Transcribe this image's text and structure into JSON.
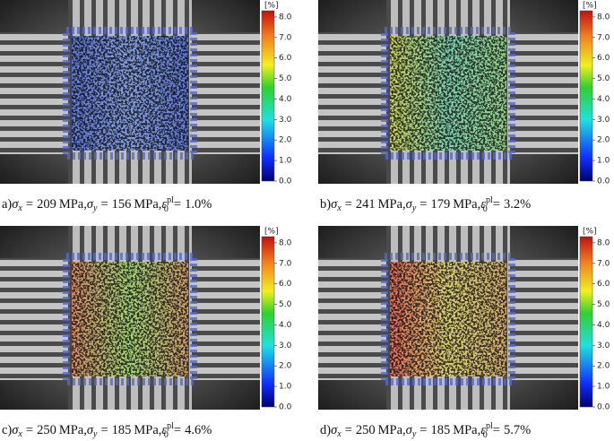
{
  "colorbar": {
    "unit": "[%]",
    "lim": [
      0,
      8.3
    ],
    "ticks": [
      {
        "value": 0,
        "label": "0.0"
      },
      {
        "value": 1,
        "label": "1.0"
      },
      {
        "value": 2,
        "label": "2.0"
      },
      {
        "value": 3,
        "label": "3.0"
      },
      {
        "value": 4,
        "label": "4.0"
      },
      {
        "value": 5,
        "label": "5.0"
      },
      {
        "value": 6,
        "label": "6.0"
      },
      {
        "value": 7,
        "label": "7.0"
      },
      {
        "value": 8,
        "label": "8.0"
      }
    ]
  },
  "symbols": {
    "sigma": "σ",
    "x": "x",
    "y": "y",
    "eps": "ε",
    "sub": "0",
    "sup": "pl",
    "eq": "=",
    "unit": "MPa",
    "sep": ","
  },
  "panels": [
    {
      "label": "a)",
      "sigma_x": "209",
      "sigma_y": "156",
      "eps": "1.0%",
      "colors": [
        "#5f78d8",
        "#86a2e6",
        "#5f78d8"
      ]
    },
    {
      "label": "b)",
      "sigma_x": "241",
      "sigma_y": "179",
      "eps": "3.2%",
      "colors": [
        "#d0d860",
        "#7fd6b0",
        "#9ad890"
      ]
    },
    {
      "label": "c)",
      "sigma_x": "250",
      "sigma_y": "185",
      "eps": "4.6%",
      "colors": [
        "#e0906a",
        "#a8dc78",
        "#d8a070"
      ]
    },
    {
      "label": "d)",
      "sigma_x": "250",
      "sigma_y": "185",
      "eps": "5.7%",
      "colors": [
        "#e86a5a",
        "#e4d878",
        "#d8b070"
      ]
    }
  ]
}
